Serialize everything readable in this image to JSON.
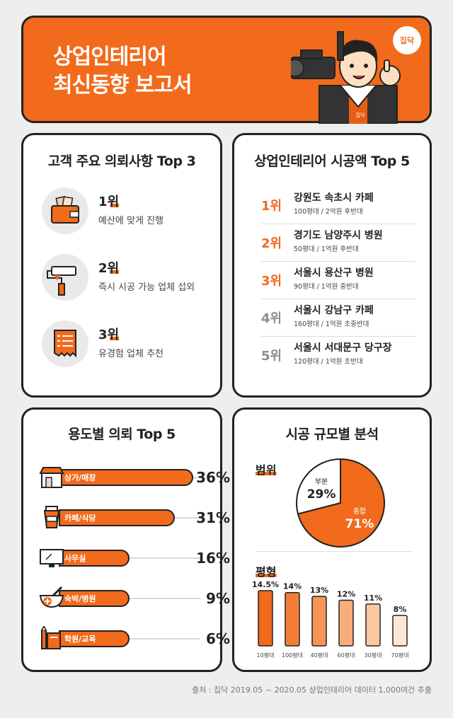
{
  "header": {
    "title_line1": "상업인테리어",
    "title_line2": "최신동향 보고서",
    "logo_text": "집닥",
    "mascot_badge": "집닥"
  },
  "requests": {
    "title": "고객 주요 의뢰사항 Top 3",
    "items": [
      {
        "rank": "1위",
        "text": "예산에 맞게 진행",
        "icon": "wallet-icon"
      },
      {
        "rank": "2위",
        "text": "즉시 시공 가능 업체 섭외",
        "icon": "paint-roller-icon"
      },
      {
        "rank": "3위",
        "text": "유경험 업체 추천",
        "icon": "receipt-icon"
      }
    ]
  },
  "cost_top5": {
    "title": "상업인테리어 시공액 Top 5",
    "items": [
      {
        "rank": "1위",
        "place": "강원도 속초시 카페",
        "detail": "100평대 / 2억원 후반대",
        "color": "#f26a1b"
      },
      {
        "rank": "2위",
        "place": "경기도 남양주시 병원",
        "detail": "50평대 / 1억원 후반대",
        "color": "#f26a1b"
      },
      {
        "rank": "3위",
        "place": "서울시 용산구 병원",
        "detail": "90평대 / 1억원 중반대",
        "color": "#f26a1b"
      },
      {
        "rank": "4위",
        "place": "서울시 강남구 카페",
        "detail": "160평대 / 1억원 초중반대",
        "color": "#8c8c8c"
      },
      {
        "rank": "5위",
        "place": "서울시 서대문구 당구장",
        "detail": "120평대 / 1억원 초반대",
        "color": "#8c8c8c"
      }
    ]
  },
  "usage": {
    "title": "용도별 의뢰 Top 5",
    "items": [
      {
        "label": "상가/매장",
        "pct": "36%",
        "value": 36,
        "icon": "store-icon"
      },
      {
        "label": "카페/식당",
        "pct": "31%",
        "value": 31,
        "icon": "coffee-cup-icon"
      },
      {
        "label": "사무실",
        "pct": "16%",
        "value": 16,
        "icon": "monitor-icon"
      },
      {
        "label": "숙박/병원",
        "pct": "9%",
        "value": 9,
        "icon": "medical-bowl-icon"
      },
      {
        "label": "학원/교육",
        "pct": "6%",
        "value": 6,
        "icon": "pencil-book-icon"
      }
    ]
  },
  "scale": {
    "title": "시공 규모별 분석",
    "scope_label": "범위",
    "size_label": "평형"
  },
  "chart_data": [
    {
      "type": "bar",
      "title": "용도별 의뢰 Top 5",
      "categories": [
        "상가/매장",
        "카페/식당",
        "사무실",
        "숙박/병원",
        "학원/교육"
      ],
      "values": [
        36,
        31,
        16,
        9,
        6
      ]
    },
    {
      "type": "pie",
      "title": "범위",
      "labels": [
        "종합",
        "부분"
      ],
      "values": [
        71,
        29
      ],
      "value_labels": [
        "71%",
        "29%"
      ],
      "colors": [
        "#f26a1b",
        "#ffffff"
      ]
    },
    {
      "type": "bar",
      "title": "평형",
      "categories": [
        "10평대",
        "100평대",
        "40평대",
        "60평대",
        "30평대",
        "70평대"
      ],
      "values": [
        14.5,
        14,
        13,
        12,
        11,
        8
      ],
      "value_labels": [
        "14.5%",
        "14%",
        "13%",
        "12%",
        "11%",
        "8%"
      ],
      "colors": [
        "#f26a1b",
        "#f47d36",
        "#f69555",
        "#f8ad7a",
        "#fbc8a4",
        "#fde8d8"
      ]
    }
  ],
  "footer": {
    "source": "출처 : 집닥 2019.05 ~ 2020.05 상업인테리어 데이터 1,000여건 추출"
  }
}
